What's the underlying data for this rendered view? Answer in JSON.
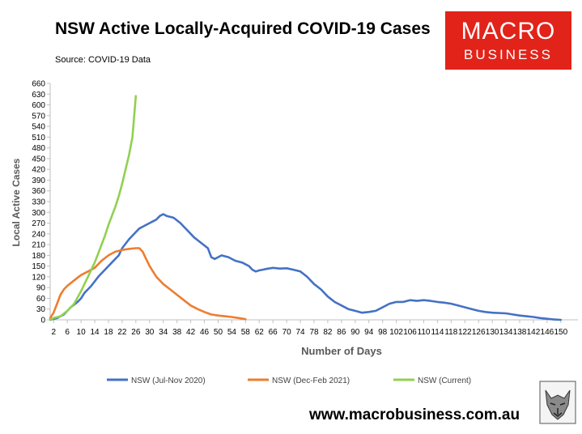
{
  "header": {
    "title": "NSW Active Locally-Acquired COVID-19 Cases",
    "source": "Source: COVID-19 Data"
  },
  "logo": {
    "line1": "MACRO",
    "line2": "BUSINESS",
    "color": "#e2231a"
  },
  "footer": {
    "url": "www.macrobusiness.com.au"
  },
  "chart_data": {
    "type": "line",
    "title": "NSW Active Locally-Acquired COVID-19 Cases",
    "xlabel": "Number of Days",
    "ylabel": "Local Active Cases",
    "xlim": [
      1,
      155
    ],
    "ylim": [
      0,
      660
    ],
    "yticks": [
      0,
      30,
      60,
      90,
      120,
      150,
      180,
      210,
      240,
      270,
      300,
      330,
      360,
      390,
      420,
      450,
      480,
      510,
      540,
      570,
      600,
      630,
      660
    ],
    "xticks": [
      2,
      6,
      10,
      14,
      18,
      22,
      26,
      30,
      34,
      38,
      42,
      46,
      50,
      54,
      58,
      62,
      66,
      70,
      74,
      78,
      82,
      86,
      90,
      94,
      98,
      102,
      106,
      110,
      114,
      118,
      122,
      126,
      130,
      134,
      138,
      142,
      146,
      150
    ],
    "grid": false,
    "legend_position": "bottom",
    "series": [
      {
        "name": "NSW (Jul-Nov 2020)",
        "color": "#4472c4",
        "x": [
          1,
          3,
          5,
          7,
          9,
          10,
          11,
          13,
          15,
          17,
          19,
          21,
          22,
          24,
          26,
          27,
          28,
          30,
          31,
          32,
          33,
          34,
          35,
          37,
          39,
          40,
          41,
          42,
          43,
          45,
          47,
          48,
          49,
          50,
          51,
          53,
          55,
          57,
          59,
          60,
          61,
          62,
          63,
          64,
          66,
          68,
          70,
          72,
          74,
          76,
          78,
          80,
          82,
          84,
          86,
          88,
          90,
          92,
          94,
          96,
          98,
          100,
          102,
          104,
          106,
          108,
          110,
          112,
          114,
          116,
          118,
          120,
          122,
          124,
          126,
          128,
          130,
          134,
          136,
          138,
          140,
          142,
          144,
          146,
          148,
          150
        ],
        "y": [
          0,
          5,
          15,
          35,
          50,
          60,
          75,
          95,
          120,
          140,
          160,
          180,
          200,
          225,
          245,
          255,
          260,
          270,
          275,
          280,
          290,
          295,
          290,
          285,
          270,
          260,
          250,
          240,
          230,
          215,
          200,
          175,
          170,
          175,
          180,
          175,
          165,
          160,
          150,
          140,
          135,
          138,
          140,
          142,
          145,
          143,
          144,
          140,
          135,
          120,
          100,
          85,
          65,
          50,
          40,
          30,
          25,
          20,
          22,
          25,
          35,
          45,
          50,
          50,
          55,
          53,
          55,
          53,
          50,
          48,
          45,
          40,
          35,
          30,
          25,
          22,
          20,
          18,
          15,
          12,
          10,
          8,
          5,
          3,
          1,
          0
        ]
      },
      {
        "name": "NSW (Dec-Feb 2021)",
        "color": "#ed7d31",
        "x": [
          1,
          2,
          3,
          4,
          5,
          6,
          8,
          10,
          12,
          14,
          16,
          18,
          20,
          22,
          24,
          26,
          27,
          28,
          29,
          30,
          32,
          34,
          36,
          38,
          40,
          42,
          44,
          46,
          48,
          50,
          52,
          54,
          56,
          58
        ],
        "y": [
          5,
          20,
          45,
          70,
          85,
          95,
          110,
          125,
          135,
          145,
          165,
          180,
          190,
          195,
          198,
          200,
          200,
          190,
          170,
          150,
          120,
          100,
          85,
          70,
          55,
          40,
          30,
          22,
          15,
          12,
          10,
          8,
          5,
          2
        ]
      },
      {
        "name": "NSW (Current)",
        "color": "#92d050",
        "x": [
          1,
          2,
          4,
          6,
          8,
          10,
          12,
          14,
          15,
          16,
          17,
          18,
          19,
          20,
          21,
          22,
          23,
          24,
          25,
          26
        ],
        "y": [
          0,
          5,
          10,
          25,
          45,
          80,
          120,
          160,
          185,
          210,
          235,
          265,
          290,
          315,
          345,
          380,
          420,
          460,
          510,
          625
        ]
      }
    ]
  }
}
